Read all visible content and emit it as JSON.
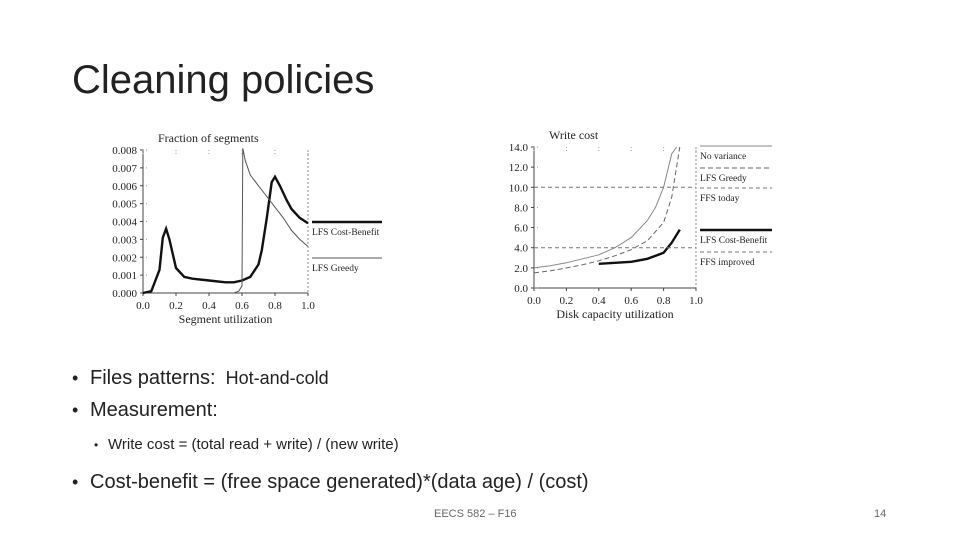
{
  "slide": {
    "title": "Cleaning policies",
    "bullets": {
      "files_label": "Files patterns:",
      "files_value": "Hot-and-cold",
      "measurement": "Measurement:",
      "write_cost": "Write cost = (total read + write) / (new write)",
      "cost_benefit": "Cost-benefit = (free space generated)*(data age) / (cost)"
    },
    "footer": "EECS 582 – F16",
    "page_number": "14"
  },
  "chart_data": [
    {
      "type": "line",
      "ylabel": "Fraction of segments",
      "xlabel": "Segment utilization",
      "xlim": [
        0,
        1.0
      ],
      "ylim": [
        0,
        0.008
      ],
      "x_ticks": [
        "0.0",
        "0.2",
        "0.4",
        "0.6",
        "0.8",
        "1.0"
      ],
      "y_ticks": [
        "0.000",
        "0.001",
        "0.002",
        "0.003",
        "0.004",
        "0.005",
        "0.006",
        "0.007",
        "0.008"
      ],
      "legend_position": "right",
      "series": [
        {
          "name": "LFS Cost-Benefit",
          "style": "solid-thick",
          "x": [
            0.0,
            0.05,
            0.1,
            0.12,
            0.14,
            0.16,
            0.2,
            0.25,
            0.3,
            0.4,
            0.5,
            0.55,
            0.6,
            0.65,
            0.7,
            0.72,
            0.75,
            0.78,
            0.8,
            0.83,
            0.87,
            0.9,
            0.95,
            1.0
          ],
          "y": [
            0.0,
            0.0001,
            0.0013,
            0.0031,
            0.0036,
            0.003,
            0.0014,
            0.0009,
            0.0008,
            0.0007,
            0.0006,
            0.0006,
            0.0007,
            0.0009,
            0.0016,
            0.0024,
            0.0042,
            0.0062,
            0.0065,
            0.006,
            0.0052,
            0.0047,
            0.0042,
            0.0039
          ]
        },
        {
          "name": "LFS Greedy",
          "style": "thin",
          "x": [
            0.55,
            0.58,
            0.6,
            0.605,
            0.62,
            0.65,
            0.7,
            0.75,
            0.8,
            0.85,
            0.9,
            0.95,
            1.0
          ],
          "y": [
            0.0,
            0.0001,
            0.0004,
            0.0081,
            0.0074,
            0.0066,
            0.006,
            0.0054,
            0.0048,
            0.0042,
            0.0035,
            0.003,
            0.0026
          ]
        }
      ]
    },
    {
      "type": "line",
      "ylabel": "Write cost",
      "xlabel": "Disk capacity utilization",
      "xlim": [
        0,
        1.0
      ],
      "ylim": [
        0,
        14.0
      ],
      "x_ticks": [
        "0.0",
        "0.2",
        "0.4",
        "0.6",
        "0.8",
        "1.0"
      ],
      "y_ticks": [
        "0.0",
        "2.0",
        "4.0",
        "6.0",
        "8.0",
        "10.0",
        "12.0",
        "14.0"
      ],
      "legend_position": "right",
      "series": [
        {
          "name": "No variance",
          "style": "thin-gray",
          "x": [
            0.0,
            0.1,
            0.2,
            0.3,
            0.4,
            0.5,
            0.6,
            0.7,
            0.75,
            0.8,
            0.85,
            0.88
          ],
          "y": [
            2.0,
            2.2,
            2.5,
            2.9,
            3.3,
            4.0,
            5.0,
            6.7,
            8.0,
            10.0,
            13.3,
            14.0
          ]
        },
        {
          "name": "LFS Greedy",
          "style": "dashed",
          "x": [
            0.0,
            0.1,
            0.2,
            0.3,
            0.4,
            0.5,
            0.6,
            0.7,
            0.8,
            0.85,
            0.9
          ],
          "y": [
            1.5,
            1.7,
            2.0,
            2.3,
            2.7,
            3.2,
            3.8,
            4.7,
            6.5,
            9.0,
            14.0
          ]
        },
        {
          "name": "FFS today",
          "style": "dashed-flat",
          "x": [
            0.0,
            1.0
          ],
          "y": [
            10.0,
            10.0
          ]
        },
        {
          "name": "LFS Cost-Benefit",
          "style": "solid-thick",
          "x": [
            0.4,
            0.5,
            0.6,
            0.7,
            0.8,
            0.85,
            0.9
          ],
          "y": [
            2.4,
            2.5,
            2.6,
            2.9,
            3.5,
            4.5,
            5.8
          ]
        },
        {
          "name": "FFS improved",
          "style": "dashed-flat",
          "x": [
            0.0,
            1.0
          ],
          "y": [
            4.0,
            4.0
          ]
        }
      ]
    }
  ]
}
